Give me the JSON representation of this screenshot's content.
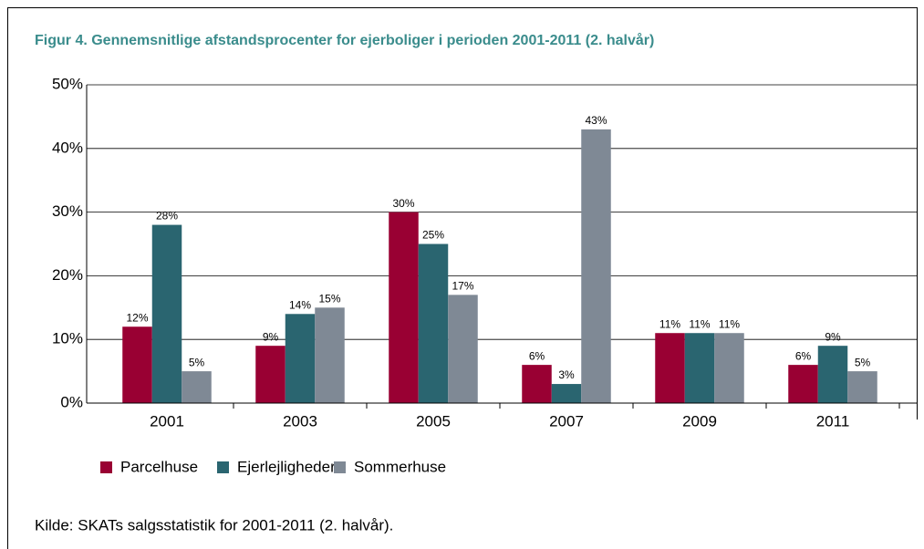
{
  "chart_data": {
    "type": "bar",
    "title": "Figur 4. Gennemsnitlige afstandsprocenter for ejerboliger i perioden 2001-2011 (2. halvår)",
    "categories": [
      "2001",
      "2003",
      "2005",
      "2007",
      "2009",
      "2011"
    ],
    "series": [
      {
        "name": "Parcelhuse",
        "color": "#990033",
        "values": [
          12,
          9,
          30,
          6,
          11,
          6
        ],
        "value_labels": [
          "12%",
          "9%",
          "30%",
          "6%",
          "11%",
          "6%"
        ]
      },
      {
        "name": "Ejerlejligheder",
        "color": "#2a6570",
        "values": [
          28,
          14,
          25,
          3,
          11,
          9
        ],
        "value_labels": [
          "28%",
          "14%",
          "25%",
          "3%",
          "11%",
          "9%"
        ]
      },
      {
        "name": "Sommerhuse",
        "color": "#7f8995",
        "values": [
          5,
          15,
          17,
          43,
          11,
          5
        ],
        "value_labels": [
          "5%",
          "15%",
          "17%",
          "43%",
          "11%",
          "5%"
        ]
      }
    ],
    "ylim": [
      0,
      50
    ],
    "yticks": [
      {
        "value": 0,
        "label": "0%"
      },
      {
        "value": 10,
        "label": "10%"
      },
      {
        "value": 20,
        "label": "20%"
      },
      {
        "value": 30,
        "label": "30%"
      },
      {
        "value": 40,
        "label": "40%"
      },
      {
        "value": 50,
        "label": "50%"
      }
    ],
    "grid": true,
    "legend": "bottom-left",
    "source": "Kilde:  SKATs salgsstatistik for 2001-2011 (2. halvår)."
  }
}
